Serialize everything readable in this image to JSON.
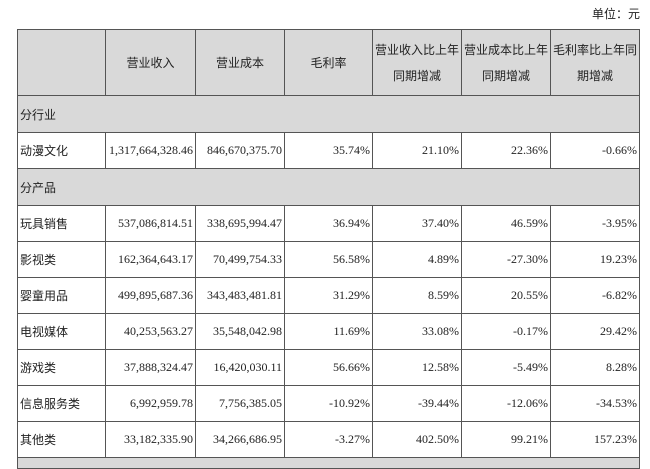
{
  "unit_label": "单位：元",
  "headers": [
    "",
    "营业收入",
    "营业成本",
    "毛利率",
    "营业收入比上年同期增减",
    "营业成本比上年同期增减",
    "毛利率比上年同期增减"
  ],
  "header_lines": [
    [
      ""
    ],
    [
      "营业收入"
    ],
    [
      "营业成本"
    ],
    [
      "毛利率"
    ],
    [
      "营业收入比上年",
      "同期增减"
    ],
    [
      "营业成本比上年",
      "同期增减"
    ],
    [
      "毛利率比上年同",
      "期增减"
    ]
  ],
  "sections": [
    {
      "title": "分行业",
      "rows": [
        [
          "动漫文化",
          "1,317,664,328.46",
          "846,670,375.70",
          "35.74%",
          "21.10%",
          "22.36%",
          "-0.66%"
        ]
      ]
    },
    {
      "title": "分产品",
      "rows": [
        [
          "玩具销售",
          "537,086,814.51",
          "338,695,994.47",
          "36.94%",
          "37.40%",
          "46.59%",
          "-3.95%"
        ],
        [
          "影视类",
          "162,364,643.17",
          "70,499,754.33",
          "56.58%",
          "4.89%",
          "-27.30%",
          "19.23%"
        ],
        [
          "婴童用品",
          "499,895,687.36",
          "343,483,481.81",
          "31.29%",
          "8.59%",
          "20.55%",
          "-6.82%"
        ],
        [
          "电视媒体",
          "40,253,563.27",
          "35,548,042.98",
          "11.69%",
          "33.08%",
          "-0.17%",
          "29.42%"
        ],
        [
          "游戏类",
          "37,888,324.47",
          "16,420,030.11",
          "56.66%",
          "12.58%",
          "-5.49%",
          "8.28%"
        ],
        [
          "信息服务类",
          "6,992,959.78",
          "7,756,385.05",
          "-10.92%",
          "-39.44%",
          "-12.06%",
          "-34.53%"
        ],
        [
          "其他类",
          "33,182,335.90",
          "34,266,686.95",
          "-3.27%",
          "402.50%",
          "99.21%",
          "157.23%"
        ]
      ]
    }
  ]
}
